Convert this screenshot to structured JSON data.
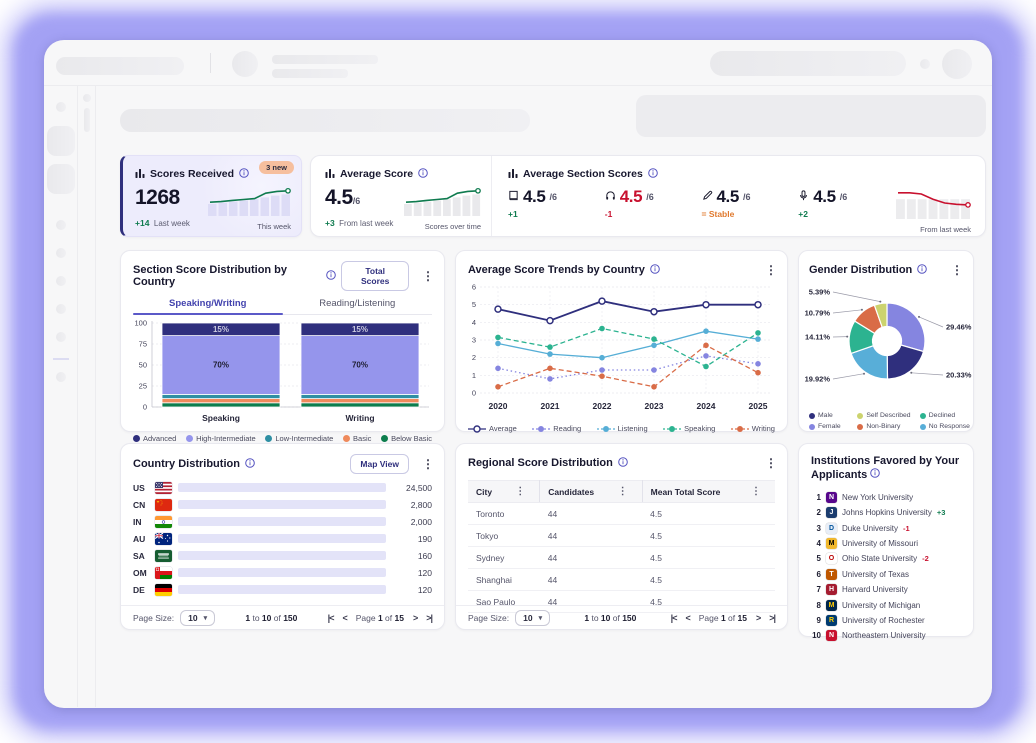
{
  "colors": {
    "accent": "#4343ae",
    "navy": "#2f2f7d",
    "green": "#0f7b4f",
    "red": "#c8102e",
    "orange": "#e07a2f",
    "track": "#e3e3f8"
  },
  "stats": {
    "received": {
      "title": "Scores Received",
      "badge": "3 new",
      "value": "1268",
      "delta": "+14",
      "delta_note": "Last week",
      "spark_note": "This week",
      "spark": {
        "bars": [
          40,
          44,
          48,
          52,
          56,
          62,
          68,
          72
        ],
        "line": [
          46,
          48,
          52,
          55,
          58,
          76,
          82,
          84
        ],
        "line_color": "#0f7b4f",
        "bar_color": "#dddcf6"
      }
    },
    "average": {
      "title": "Average Score",
      "value": "4.5",
      "denom": "/6",
      "delta": "+3",
      "delta_note": "From last week",
      "spark_note": "Scores over time",
      "spark": {
        "bars": [
          40,
          44,
          48,
          52,
          56,
          62,
          68,
          72
        ],
        "line": [
          46,
          48,
          52,
          55,
          58,
          76,
          82,
          84
        ],
        "line_color": "#0f7b4f",
        "bar_color": "#e9e9ec"
      }
    },
    "sections": {
      "title": "Average Section Scores",
      "spark_note": "From last week",
      "items": [
        {
          "icon": "book-icon",
          "value": "4.5",
          "denom": "/6",
          "delta": "+1",
          "delta_class": "g",
          "value_class": ""
        },
        {
          "icon": "headphones-icon",
          "value": "4.5",
          "denom": "/6",
          "delta": "-1",
          "delta_class": "r",
          "value_class": "red"
        },
        {
          "icon": "pencil-icon",
          "value": "4.5",
          "denom": "/6",
          "delta": "= Stable",
          "delta_class": "o",
          "value_class": ""
        },
        {
          "icon": "microphone-icon",
          "value": "4.5",
          "denom": "/6",
          "delta": "+2",
          "delta_class": "g",
          "value_class": ""
        }
      ],
      "spark": {
        "bars": [
          62,
          62,
          62,
          62,
          62,
          62,
          62
        ],
        "line": [
          82,
          82,
          78,
          62,
          50,
          46,
          44
        ],
        "line_color": "#c8102e",
        "bar_color": "#ececee"
      }
    }
  },
  "section_distribution": {
    "title": "Section Score Distribution by Country",
    "button": "Total Scores",
    "tabs": [
      {
        "label": "Speaking/Writing",
        "active": true
      },
      {
        "label": "Reading/Listening",
        "active": false
      }
    ],
    "chart_data": {
      "type": "stacked-bar",
      "categories": [
        "Speaking",
        "Writing"
      ],
      "y_ticks": [
        100,
        75,
        50,
        25,
        0
      ],
      "segments_bottom_up": [
        {
          "name": "Below Basic",
          "color": "#0c7d4d",
          "values": [
            5,
            5
          ]
        },
        {
          "name": "Basic",
          "color": "#ef8a5c",
          "values": [
            5,
            5
          ]
        },
        {
          "name": "Low-Intermediate",
          "color": "#2e8fa3",
          "values": [
            5,
            5
          ]
        },
        {
          "name": "High-Intermediate",
          "color": "#9595ec",
          "values": [
            70,
            70
          ],
          "show_label": true,
          "label_color": "#1d1d30"
        },
        {
          "name": "Advanced",
          "color": "#2f2f7d",
          "values": [
            15,
            15
          ],
          "show_label": true,
          "label_color": "#c9c9de"
        }
      ],
      "legend_order": [
        "Advanced",
        "High-Intermediate",
        "Low-Intermediate",
        "Basic",
        "Below Basic"
      ]
    }
  },
  "trends": {
    "title": "Average Score Trends by Country",
    "chart_data": {
      "type": "line",
      "x": [
        "2020",
        "2021",
        "2022",
        "2023",
        "2024",
        "2025"
      ],
      "ylim": [
        0,
        6
      ],
      "series": [
        {
          "name": "Average",
          "color": "#2f2f7d",
          "style": "solid",
          "marker": "open",
          "values": [
            4.75,
            4.1,
            5.2,
            4.6,
            5.0,
            5.0
          ]
        },
        {
          "name": "Reading",
          "color": "#8585e0",
          "style": "dotted",
          "marker": "filled",
          "values": [
            1.4,
            0.8,
            1.3,
            1.3,
            2.1,
            1.65
          ]
        },
        {
          "name": "Listening",
          "color": "#56aed6",
          "style": "solid",
          "marker": "filled",
          "values": [
            2.8,
            2.2,
            2.0,
            2.7,
            3.5,
            3.05
          ]
        },
        {
          "name": "Speaking",
          "color": "#2cb390",
          "style": "dashed",
          "marker": "filled",
          "values": [
            3.15,
            2.6,
            3.65,
            3.05,
            1.5,
            3.4
          ]
        },
        {
          "name": "Writing",
          "color": "#d96c47",
          "style": "dashed",
          "marker": "filled",
          "values": [
            0.35,
            1.4,
            0.95,
            0.35,
            2.7,
            1.15
          ]
        }
      ]
    }
  },
  "gender": {
    "title": "Gender Distribution",
    "chart_data": {
      "type": "donut",
      "slices": [
        {
          "label": "Female",
          "pct": 29.46,
          "color": "#8585e0",
          "side": "right",
          "ly": 48
        },
        {
          "label": "Male",
          "pct": 20.33,
          "color": "#2f2f7d",
          "side": "right",
          "ly": 96
        },
        {
          "label": "No Response",
          "pct": 19.92,
          "color": "#58aed8",
          "side": "left",
          "ly": 100
        },
        {
          "label": "Declined",
          "pct": 14.11,
          "color": "#2cb390",
          "side": "left",
          "ly": 58
        },
        {
          "label": "Non-Binary",
          "pct": 10.79,
          "color": "#d96c47",
          "side": "left",
          "ly": 34
        },
        {
          "label": "Self Described",
          "pct": 5.39,
          "color": "#ccd36e",
          "side": "left",
          "ly": 13
        }
      ],
      "legend_order": [
        "Male",
        "Self Described",
        "Declined",
        "Female",
        "Non-Binary",
        "No Response"
      ]
    }
  },
  "country": {
    "title": "Country Distribution",
    "button": "Map View",
    "rows": [
      {
        "code": "US",
        "flag": "us",
        "value": "24,500",
        "frac": 1.0
      },
      {
        "code": "CN",
        "flag": "cn",
        "value": "2,800",
        "frac": 0.655
      },
      {
        "code": "IN",
        "flag": "in",
        "value": "2,000",
        "frac": 0.545
      },
      {
        "code": "AU",
        "flag": "au",
        "value": "190",
        "frac": 0.215
      },
      {
        "code": "SA",
        "flag": "sa",
        "value": "160",
        "frac": 0.155
      },
      {
        "code": "OM",
        "flag": "om",
        "value": "120",
        "frac": 0.1
      },
      {
        "code": "DE",
        "flag": "de",
        "value": "120",
        "frac": 0.1
      }
    ]
  },
  "regional": {
    "title": "Regional Score Distribution",
    "columns": [
      "City",
      "Candidates",
      "Mean Total Score"
    ],
    "rows": [
      [
        "Toronto",
        "44",
        "4.5"
      ],
      [
        "Tokyo",
        "44",
        "4.5"
      ],
      [
        "Sydney",
        "44",
        "4.5"
      ],
      [
        "Shanghai",
        "44",
        "4.5"
      ],
      [
        "Sao Paulo",
        "44",
        "4.5"
      ]
    ]
  },
  "pagination": {
    "page_size_label": "Page Size:",
    "page_size": "10",
    "range": [
      "1",
      "to",
      "10",
      "of",
      "150"
    ],
    "page": [
      "Page",
      "1",
      "of",
      "15"
    ]
  },
  "institutions": {
    "title": "Institutions Favored by Your Applicants",
    "items": [
      {
        "rank": "1",
        "name": "New York University",
        "initial": "N",
        "logo_bg": "#57068c",
        "logo_fg": "#ffffff"
      },
      {
        "rank": "2",
        "name": "Johns Hopkins University",
        "initial": "J",
        "logo_bg": "#1b3c6e",
        "logo_fg": "#ffffff",
        "delta": "+3",
        "delta_class": "g"
      },
      {
        "rank": "3",
        "name": "Duke University",
        "initial": "D",
        "logo_bg": "#e8eef7",
        "logo_fg": "#00539b",
        "delta": "-1",
        "delta_class": "r"
      },
      {
        "rank": "4",
        "name": "University of Missouri",
        "initial": "M",
        "logo_bg": "#f1b82d",
        "logo_fg": "#000000"
      },
      {
        "rank": "5",
        "name": "Ohio State University",
        "initial": "O",
        "logo_bg": "#ffffff",
        "logo_fg": "#bb0000",
        "delta": "-2",
        "delta_class": "r"
      },
      {
        "rank": "6",
        "name": "University of Texas",
        "initial": "T",
        "logo_bg": "#bf5700",
        "logo_fg": "#ffffff"
      },
      {
        "rank": "7",
        "name": "Harvard University",
        "initial": "H",
        "logo_bg": "#a51c30",
        "logo_fg": "#ffffff"
      },
      {
        "rank": "8",
        "name": "University of Michigan",
        "initial": "M",
        "logo_bg": "#00274c",
        "logo_fg": "#ffcb05"
      },
      {
        "rank": "9",
        "name": "University of Rochester",
        "initial": "R",
        "logo_bg": "#003b71",
        "logo_fg": "#ffd100"
      },
      {
        "rank": "10",
        "name": "Northeastern University",
        "initial": "N",
        "logo_bg": "#c8102e",
        "logo_fg": "#ffffff"
      }
    ]
  }
}
